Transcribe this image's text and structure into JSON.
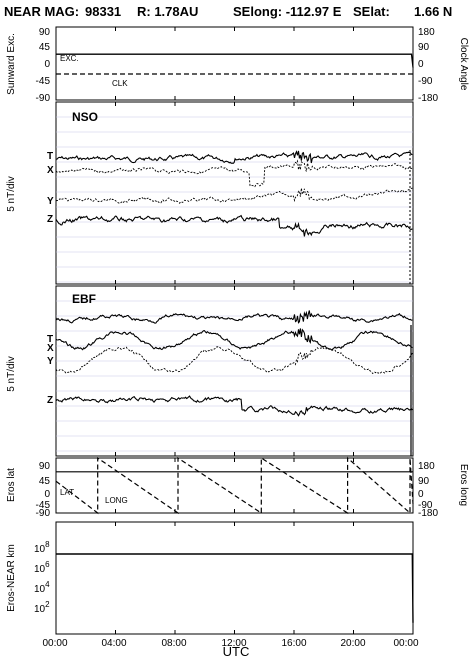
{
  "title": {
    "spacecraft": "NEAR MAG:",
    "day": "98331",
    "r": "R: 1.78AU",
    "selong": "SElong: -112.97 E",
    "selat_label": "SElat:",
    "selat_value": "1.66 N"
  },
  "x_axis": {
    "label": "UTC",
    "ticks": [
      "00:00",
      "04:00",
      "08:00",
      "12:00",
      "16:00",
      "20:00",
      "00:00"
    ],
    "hours": [
      0,
      4,
      8,
      12,
      16,
      20,
      24
    ]
  },
  "chart_data": [
    {
      "type": "line",
      "panel": "sunward-clock",
      "ylabel": "Sunward Exc.",
      "ylabel_right": "Clock Angle",
      "ylim": [
        -90,
        90
      ],
      "yticks": [
        "90",
        "45",
        "0",
        "-45",
        "-90"
      ],
      "yticks_right": [
        "180",
        "90",
        "0",
        "-90",
        "-180"
      ],
      "ylim_right": [
        -180,
        180
      ],
      "series": [
        {
          "name": "EXC.",
          "x": [
            0,
            23.9,
            24.0
          ],
          "y": [
            23,
            23,
            -10
          ],
          "style": "solid"
        },
        {
          "name": "CLK",
          "x": [
            0,
            24.0
          ],
          "y": [
            -26,
            -26
          ],
          "style": "dashed"
        }
      ]
    },
    {
      "type": "line",
      "panel": "nso",
      "title": "NSO",
      "ylabel": "5 nT/div",
      "traces": [
        "T",
        "X",
        "Y",
        "Z"
      ],
      "style": "stacked magnetometer traces, offsets per component"
    },
    {
      "type": "line",
      "panel": "ebf",
      "title": "EBF",
      "ylabel": "5 nT/div",
      "traces": [
        "T",
        "X",
        "Y",
        "Z"
      ],
      "style": "stacked magnetometer traces, offsets per component"
    },
    {
      "type": "line",
      "panel": "eros-lat-long",
      "ylabel": "Eros lat",
      "ylabel_right": "Eros long",
      "ylim": [
        -90,
        90
      ],
      "yticks": [
        "90",
        "45",
        "0",
        "-45",
        "-90"
      ],
      "yticks_right": [
        "180",
        "90",
        "0",
        "-90",
        "-180"
      ],
      "ylim_right": [
        -180,
        180
      ],
      "series": [
        {
          "name": "LAT",
          "x": [
            0,
            24
          ],
          "y": [
            45,
            45
          ],
          "style": "solid"
        },
        {
          "name": "LONG",
          "x": [
            0,
            2.8,
            2.8,
            8.2,
            8.2,
            13.8,
            13.8,
            19.6,
            19.6,
            23.8,
            23.8,
            24.0
          ],
          "y": [
            28,
            -180,
            180,
            -180,
            180,
            -180,
            180,
            -180,
            180,
            -180,
            180,
            -120
          ],
          "style": "dashed"
        }
      ]
    },
    {
      "type": "line",
      "panel": "eros-near-range",
      "ylabel": "Eros-NEAR km",
      "yscale": "log",
      "ylim": [
        10,
        100000000
      ],
      "yticks": [
        "10^8",
        "10^6",
        "10^4",
        "10^2"
      ],
      "series": [
        {
          "name": "range",
          "x": [
            0,
            23.95,
            24.0
          ],
          "y": [
            1000000,
            1000000,
            50
          ],
          "style": "solid"
        }
      ]
    }
  ],
  "panel_labels": {
    "exc": "EXC.",
    "clk": "CLK",
    "nso": "NSO",
    "ebf": "EBF",
    "lat": "LAT",
    "long": "LONG"
  },
  "axis_labels": {
    "sunward": "Sunward Exc.",
    "clock": "Clock Angle",
    "nso_div": "5 nT/div",
    "ebf_div": "5 nT/div",
    "eros_lat": "Eros lat",
    "eros_long": "Eros long",
    "range": "Eros-NEAR km"
  },
  "range_ticks": {
    "bases": [
      "10",
      "10",
      "10",
      "10"
    ],
    "exps": [
      "8",
      "6",
      "4",
      "2"
    ]
  },
  "trace_labels": {
    "nso": [
      "T",
      "X",
      "Y",
      "Z"
    ],
    "ebf": [
      "T",
      "X",
      "Y",
      "Z"
    ]
  }
}
